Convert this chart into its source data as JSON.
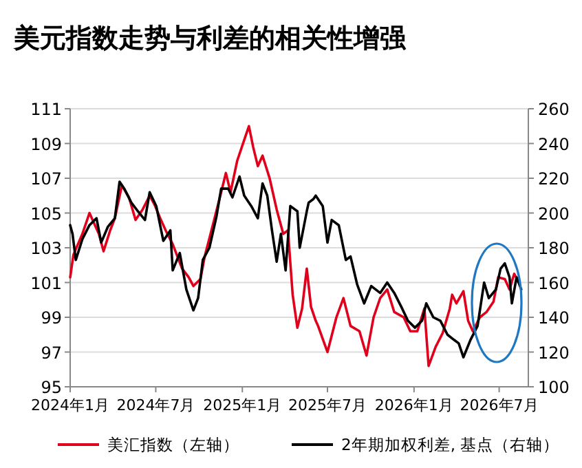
{
  "chart_data": {
    "type": "line",
    "title": "美元指数走势与利差的相关性增强",
    "xlim": [
      "2024-01-01",
      "2026-09-01"
    ],
    "xticks": [
      {
        "value": "2024-01-01",
        "label": "2024年1月"
      },
      {
        "value": "2024-07-01",
        "label": "2024年7月"
      },
      {
        "value": "2025-01-01",
        "label": "2025年1月"
      },
      {
        "value": "2025-07-01",
        "label": "2025年7月"
      },
      {
        "value": "2026-01-01",
        "label": "2026年1月"
      },
      {
        "value": "2026-07-01",
        "label": "2026年7月"
      }
    ],
    "ylim": [
      95,
      111
    ],
    "yticks": [
      95,
      97,
      99,
      101,
      103,
      105,
      107,
      109,
      111
    ],
    "y2lim": [
      100,
      260
    ],
    "y2ticks": [
      100,
      120,
      140,
      160,
      180,
      200,
      220,
      240,
      260
    ],
    "grid": "y",
    "legend": "bottom",
    "line_style": "solid",
    "marker": "none",
    "series": [
      {
        "name": "美汇指数（左轴）",
        "color": "#e0001b",
        "x": [
          "2024-01-01",
          "2024-01-08",
          "2024-01-27",
          "2024-02-11",
          "2024-03-02",
          "2024-03-12",
          "2024-03-26",
          "2024-04-05",
          "2024-04-20",
          "2024-05-05",
          "2024-05-19",
          "2024-06-03",
          "2024-06-18",
          "2024-06-28",
          "2024-07-12",
          "2024-07-22",
          "2024-08-06",
          "2024-08-26",
          "2024-09-09",
          "2024-09-19",
          "2024-10-04",
          "2024-10-13",
          "2024-11-02",
          "2024-11-17",
          "2024-11-27",
          "2024-12-07",
          "2024-12-21",
          "2025-01-05",
          "2025-01-15",
          "2025-01-24",
          "2025-02-03",
          "2025-02-13",
          "2025-02-28",
          "2025-03-15",
          "2025-03-29",
          "2025-04-08",
          "2025-04-18",
          "2025-04-28",
          "2025-05-08",
          "2025-05-18",
          "2025-05-27",
          "2025-06-06",
          "2025-06-11",
          "2025-07-01",
          "2025-07-20",
          "2025-08-04",
          "2025-08-19",
          "2025-09-07",
          "2025-09-22",
          "2025-10-07",
          "2025-10-21",
          "2025-11-05",
          "2025-11-20",
          "2025-12-10",
          "2025-12-24",
          "2026-01-08",
          "2026-01-23",
          "2026-02-01",
          "2026-02-16",
          "2026-03-03",
          "2026-03-18",
          "2026-03-23",
          "2026-04-01",
          "2026-04-16",
          "2026-04-26",
          "2026-05-06",
          "2026-05-21",
          "2026-06-04",
          "2026-06-19",
          "2026-06-29",
          "2026-07-13",
          "2026-07-23",
          "2026-08-02",
          "2026-08-12"
        ],
        "values": [
          101.3,
          102.6,
          103.8,
          105.0,
          103.8,
          102.8,
          104.0,
          104.7,
          106.6,
          105.9,
          104.6,
          105.2,
          106.0,
          105.5,
          104.6,
          104.0,
          103.2,
          101.8,
          101.3,
          100.8,
          101.2,
          102.5,
          104.6,
          106.2,
          107.3,
          106.2,
          108.0,
          109.2,
          110.0,
          108.8,
          107.7,
          108.3,
          107.0,
          105.2,
          103.8,
          104.0,
          100.3,
          98.4,
          99.5,
          101.8,
          99.6,
          98.8,
          98.5,
          97.0,
          99.0,
          100.1,
          98.5,
          98.2,
          96.8,
          99.0,
          100.1,
          100.6,
          99.3,
          99.0,
          98.2,
          98.2,
          99.5,
          96.2,
          97.3,
          98.1,
          99.5,
          100.3,
          99.8,
          100.5,
          98.8,
          98.2,
          99.0,
          99.3,
          99.9,
          101.3,
          101.2,
          100.6,
          101.5,
          101.0
        ]
      },
      {
        "name": "2年期加权利差, 基点（右轴）",
        "color": "#000000",
        "axis": "y2",
        "x": [
          "2024-01-01",
          "2024-01-06",
          "2024-01-13",
          "2024-01-27",
          "2024-02-11",
          "2024-02-26",
          "2024-03-07",
          "2024-03-21",
          "2024-04-05",
          "2024-04-15",
          "2024-04-25",
          "2024-05-10",
          "2024-05-24",
          "2024-06-08",
          "2024-06-18",
          "2024-07-02",
          "2024-07-17",
          "2024-08-01",
          "2024-08-06",
          "2024-08-21",
          "2024-09-04",
          "2024-09-19",
          "2024-09-29",
          "2024-10-09",
          "2024-10-23",
          "2024-11-07",
          "2024-11-17",
          "2024-12-02",
          "2024-12-11",
          "2024-12-26",
          "2025-01-05",
          "2025-01-20",
          "2025-02-03",
          "2025-02-13",
          "2025-02-23",
          "2025-03-05",
          "2025-03-15",
          "2025-03-24",
          "2025-04-03",
          "2025-04-13",
          "2025-04-28",
          "2025-05-03",
          "2025-05-18",
          "2025-05-22",
          "2025-06-01",
          "2025-06-06",
          "2025-06-21",
          "2025-07-01",
          "2025-07-10",
          "2025-07-25",
          "2025-08-09",
          "2025-08-19",
          "2025-09-02",
          "2025-09-17",
          "2025-10-02",
          "2025-10-21",
          "2025-11-05",
          "2025-11-20",
          "2025-12-05",
          "2025-12-19",
          "2026-01-03",
          "2026-01-18",
          "2026-01-27",
          "2026-02-11",
          "2026-02-26",
          "2026-03-13",
          "2026-03-27",
          "2026-04-06",
          "2026-04-16",
          "2026-05-01",
          "2026-05-16",
          "2026-05-30",
          "2026-06-09",
          "2026-06-24",
          "2026-07-04",
          "2026-07-13",
          "2026-07-23",
          "2026-07-28",
          "2026-08-07",
          "2026-08-17"
        ],
        "values": [
          193,
          188,
          173,
          185,
          193,
          197,
          183,
          192,
          197,
          218,
          214,
          206,
          201,
          196,
          212,
          204,
          184,
          190,
          167,
          177,
          156,
          144,
          151,
          173,
          180,
          198,
          214,
          214,
          209,
          221,
          210,
          204,
          197,
          217,
          210,
          190,
          172,
          188,
          167,
          204,
          201,
          180,
          201,
          206,
          208,
          210,
          204,
          183,
          196,
          193,
          173,
          175,
          159,
          148,
          158,
          154,
          160,
          154,
          146,
          138,
          134,
          138,
          148,
          140,
          138,
          130,
          127,
          125,
          117,
          127,
          135,
          160,
          151,
          156,
          168,
          171,
          163,
          148,
          163,
          156
        ]
      }
    ]
  }
}
